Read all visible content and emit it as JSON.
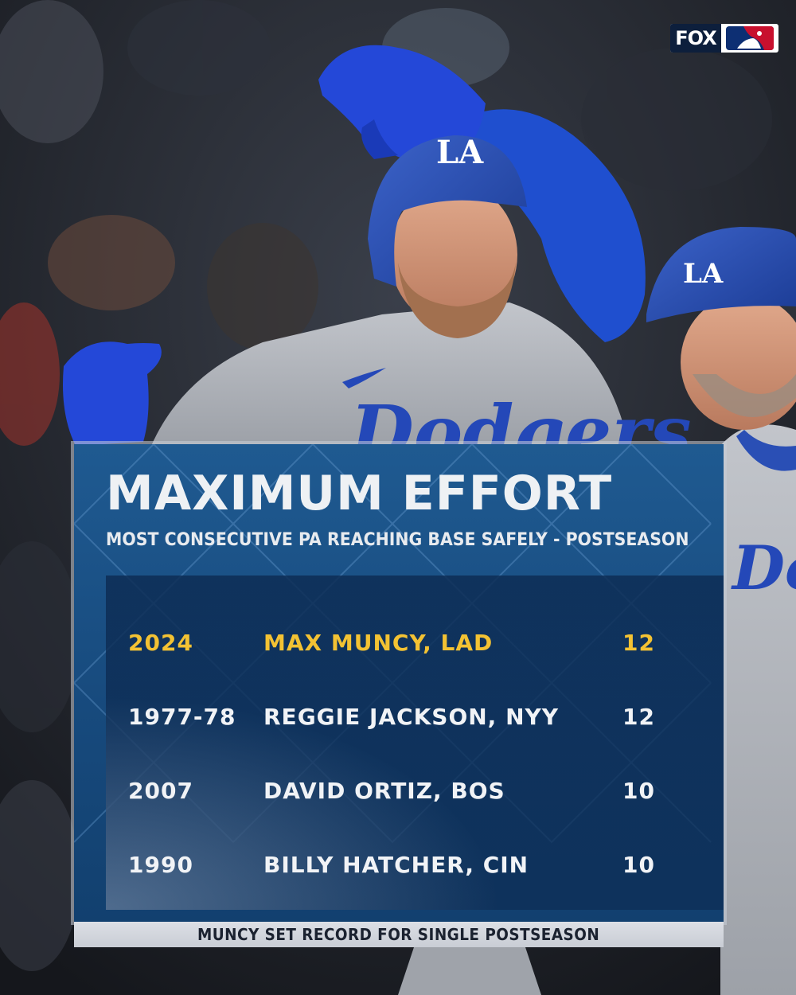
{
  "logo": {
    "network": "FOX",
    "league_icon": "mlb-logo-icon"
  },
  "graphic": {
    "title": "MAXIMUM EFFORT",
    "subtitle": "MOST CONSECUTIVE PA REACHING BASE SAFELY - POSTSEASON",
    "rows": [
      {
        "year": "2024",
        "player": "MAX MUNCY, LAD",
        "value": "12",
        "highlight": true
      },
      {
        "year": "1977-78",
        "player": "REGGIE JACKSON, NYY",
        "value": "12",
        "highlight": false
      },
      {
        "year": "2007",
        "player": "DAVID ORTIZ, BOS",
        "value": "10",
        "highlight": false
      },
      {
        "year": "1990",
        "player": "BILLY HATCHER, CIN",
        "value": "10",
        "highlight": false
      }
    ],
    "footer": "MUNCY SET RECORD FOR SINGLE POSTSEASON"
  },
  "photo": {
    "jersey_text": "Dodgers",
    "helmet_logo": "LA",
    "colors": {
      "dodger_blue": "#1f4fcf",
      "jersey_gray": "#b9bcc2",
      "highlight_gold": "#f3c233",
      "panel_blue": "#1f5a91"
    }
  }
}
